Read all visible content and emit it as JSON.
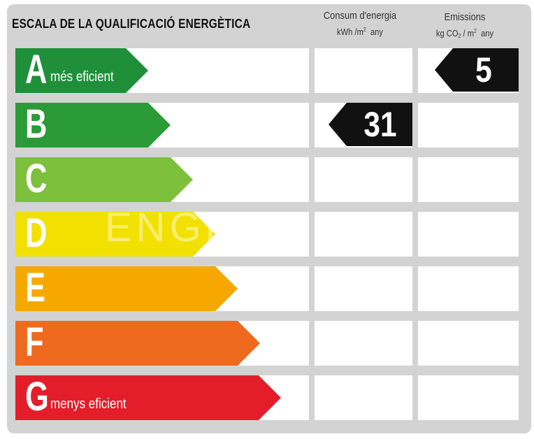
{
  "title": "ESCALA DE LA QUALIFICACIÓ ENERGÈTICA",
  "columns": {
    "consumption": {
      "label": "Consum d'energia",
      "unit_main": "kWh /m",
      "unit_sup": "2",
      "unit_tail": "any"
    },
    "emissions": {
      "label": "Emissions",
      "unit_main": "kg CO",
      "unit_sub": "2",
      "unit_mid": " / m",
      "unit_sup": "2",
      "unit_tail": "any"
    }
  },
  "ratings": [
    {
      "letter": "A",
      "desc": "més eficient",
      "color": "#1f8f3a"
    },
    {
      "letter": "B",
      "desc": "",
      "color": "#2a9b36"
    },
    {
      "letter": "C",
      "desc": "",
      "color": "#7cc03b"
    },
    {
      "letter": "D",
      "desc": "",
      "color": "#f2e100"
    },
    {
      "letter": "E",
      "desc": "",
      "color": "#f6a800"
    },
    {
      "letter": "F",
      "desc": "",
      "color": "#ee6a1f"
    },
    {
      "letter": "G",
      "desc": "menys eficient",
      "color": "#e31e2a"
    }
  ],
  "consumption_value": {
    "value": "31",
    "rating": "B"
  },
  "emissions_value": {
    "value": "5",
    "rating": "A"
  },
  "watermark": "ENGE"
}
